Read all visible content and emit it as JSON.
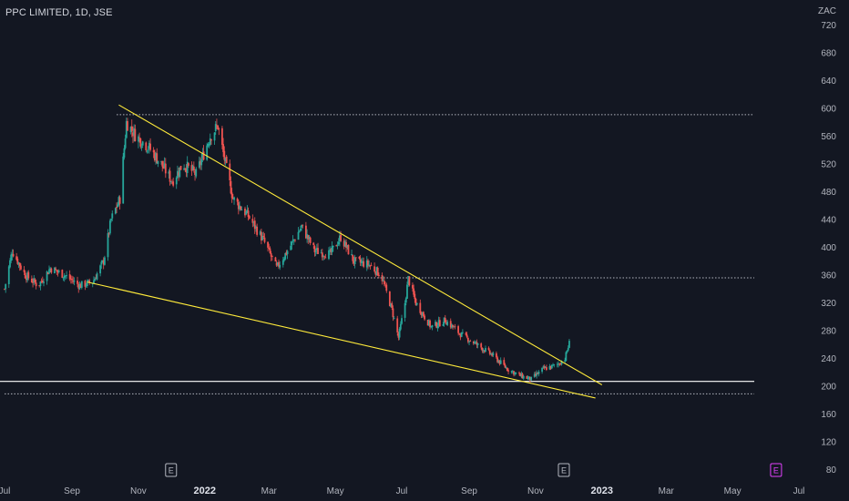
{
  "header": {
    "title": "PPC LIMITED, 1D, JSE",
    "currency": "ZAC"
  },
  "colors": {
    "background": "#131722",
    "up_candle": "#26a69a",
    "down_candle": "#ef5350",
    "trendline": "#ffeb3b",
    "support_line": "#ffffff",
    "dotted_level": "#b2b5be",
    "event_marker": "#b2b5be",
    "highlight_marker": "#e040fb"
  },
  "chart_data": {
    "type": "candlestick",
    "symbol": "PPC LIMITED",
    "interval": "1D",
    "exchange": "JSE",
    "currency": "ZAC",
    "y_axis": {
      "min": 80,
      "max": 720,
      "ticks": [
        720,
        680,
        640,
        600,
        560,
        520,
        480,
        440,
        400,
        360,
        320,
        280,
        240,
        200,
        160,
        120,
        80
      ]
    },
    "x_axis": {
      "start": "2021-07-01",
      "end": "2023-07-01",
      "ticks": [
        {
          "date": "2021-07-01",
          "label": "Jul",
          "bold": false
        },
        {
          "date": "2021-09-01",
          "label": "Sep",
          "bold": false
        },
        {
          "date": "2021-11-01",
          "label": "Nov",
          "bold": false
        },
        {
          "date": "2022-01-01",
          "label": "2022",
          "bold": true
        },
        {
          "date": "2022-03-01",
          "label": "Mar",
          "bold": false
        },
        {
          "date": "2022-05-01",
          "label": "May",
          "bold": false
        },
        {
          "date": "2022-07-01",
          "label": "Jul",
          "bold": false
        },
        {
          "date": "2022-09-01",
          "label": "Sep",
          "bold": false
        },
        {
          "date": "2022-11-01",
          "label": "Nov",
          "bold": false
        },
        {
          "date": "2023-01-01",
          "label": "2023",
          "bold": true
        },
        {
          "date": "2023-03-01",
          "label": "Mar",
          "bold": false
        },
        {
          "date": "2023-05-01",
          "label": "May",
          "bold": false
        },
        {
          "date": "2023-07-01",
          "label": "Jul",
          "bold": false
        }
      ]
    },
    "price_path": [
      [
        "2021-07-01",
        340
      ],
      [
        "2021-07-08",
        395
      ],
      [
        "2021-07-20",
        360
      ],
      [
        "2021-08-01",
        345
      ],
      [
        "2021-08-12",
        370
      ],
      [
        "2021-08-25",
        360
      ],
      [
        "2021-09-08",
        345
      ],
      [
        "2021-09-20",
        350
      ],
      [
        "2021-09-30",
        380
      ],
      [
        "2021-10-07",
        440
      ],
      [
        "2021-10-15",
        470
      ],
      [
        "2021-10-21",
        580
      ],
      [
        "2021-10-30",
        560
      ],
      [
        "2021-11-10",
        545
      ],
      [
        "2021-11-22",
        520
      ],
      [
        "2021-12-02",
        495
      ],
      [
        "2021-12-12",
        520
      ],
      [
        "2021-12-24",
        505
      ],
      [
        "2022-01-06",
        560
      ],
      [
        "2022-01-13",
        575
      ],
      [
        "2022-01-20",
        520
      ],
      [
        "2022-01-27",
        470
      ],
      [
        "2022-02-10",
        445
      ],
      [
        "2022-02-24",
        410
      ],
      [
        "2022-03-08",
        370
      ],
      [
        "2022-03-20",
        400
      ],
      [
        "2022-03-31",
        430
      ],
      [
        "2022-04-12",
        395
      ],
      [
        "2022-04-26",
        390
      ],
      [
        "2022-05-06",
        415
      ],
      [
        "2022-05-18",
        380
      ],
      [
        "2022-06-01",
        375
      ],
      [
        "2022-06-12",
        360
      ],
      [
        "2022-06-22",
        310
      ],
      [
        "2022-06-28",
        270
      ],
      [
        "2022-07-04",
        320
      ],
      [
        "2022-07-07",
        355
      ],
      [
        "2022-07-14",
        320
      ],
      [
        "2022-07-28",
        285
      ],
      [
        "2022-08-10",
        295
      ],
      [
        "2022-08-24",
        275
      ],
      [
        "2022-09-08",
        260
      ],
      [
        "2022-09-22",
        245
      ],
      [
        "2022-10-06",
        225
      ],
      [
        "2022-10-18",
        215
      ],
      [
        "2022-10-28",
        210
      ],
      [
        "2022-11-08",
        225
      ],
      [
        "2022-11-20",
        230
      ],
      [
        "2022-11-28",
        240
      ],
      [
        "2022-12-02",
        262
      ]
    ],
    "annotations": {
      "upper_trendline": {
        "from": [
          "2021-10-14",
          605
        ],
        "to": [
          "2023-01-01",
          202
        ]
      },
      "lower_trendline": {
        "from": [
          "2021-09-15",
          350
        ],
        "to": [
          "2022-12-26",
          183
        ]
      },
      "support_line": {
        "from": [
          "2021-07-01",
          207
        ],
        "to": [
          "2023-06-01",
          207
        ]
      },
      "dotted_levels": [
        {
          "price": 591,
          "from": "2021-10-12",
          "to": "2023-06-01"
        },
        {
          "price": 356,
          "from": "2022-02-20",
          "to": "2023-06-01"
        },
        {
          "price": 189,
          "from": "2021-07-01",
          "to": "2023-06-01"
        }
      ]
    },
    "event_markers": [
      {
        "date": "2021-12-01",
        "label": "E",
        "highlight": false
      },
      {
        "date": "2022-11-27",
        "label": "E",
        "highlight": false
      },
      {
        "date": "2023-06-10",
        "label": "E",
        "highlight": true
      }
    ]
  }
}
